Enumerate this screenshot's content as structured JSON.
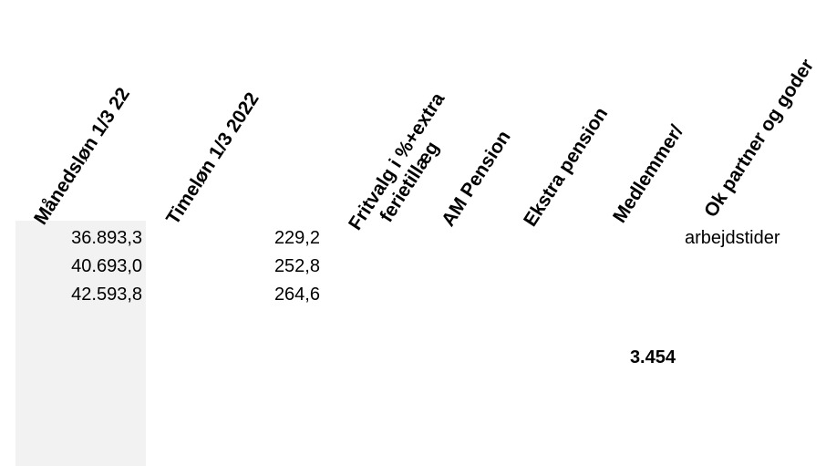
{
  "sheet": {
    "shade_color": "#f2f2f2",
    "headers": {
      "maanedsloen": "Månedsløn 1/3 22",
      "timeloen": "Timeløn 1/3 2022",
      "fritvalg_line1": "Fritvalg i %+extra",
      "fritvalg_line2": "ferietillæg",
      "am_pension": "AM Pension",
      "ekstra_pension": "Ekstra pension",
      "medlemmer": "Medlemmer/",
      "ok_partner": "Ok partner og goder"
    },
    "rows": [
      {
        "maanedsloen": "36.893,3",
        "timeloen": "229,2"
      },
      {
        "maanedsloen": "40.693,0",
        "timeloen": "252,8"
      },
      {
        "maanedsloen": "42.593,8",
        "timeloen": "264,6"
      }
    ],
    "ok_partner_cell": "arbejdstider",
    "medlemmer_value": "3.454"
  }
}
